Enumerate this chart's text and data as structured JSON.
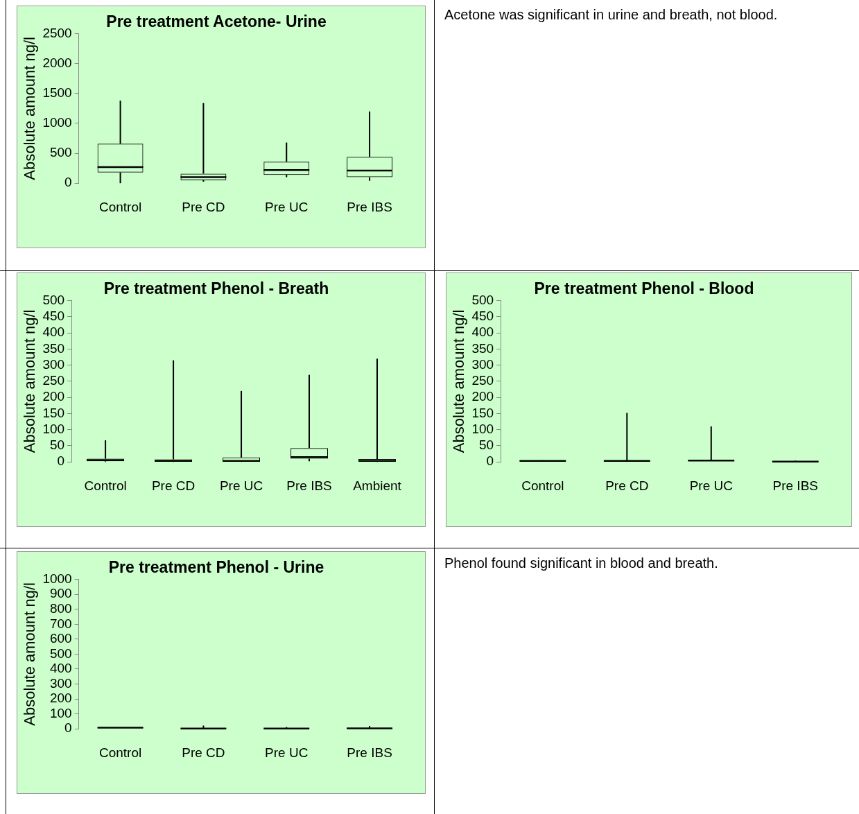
{
  "chart_data": [
    {
      "type": "box",
      "title": "Pre treatment Acetone- Urine",
      "ylabel": "Absolute amount ng/l",
      "categories": [
        "Control",
        "Pre CD",
        "Pre UC",
        "Pre IBS"
      ],
      "ylim": [
        0,
        2500
      ],
      "yticks": [
        0,
        500,
        1000,
        1500,
        2000,
        2500
      ],
      "boxes": [
        {
          "low": 0,
          "q1": 180,
          "median": 270,
          "q3": 660,
          "high": 1380
        },
        {
          "low": 25,
          "q1": 50,
          "median": 100,
          "q3": 160,
          "high": 1340
        },
        {
          "low": 100,
          "q1": 140,
          "median": 220,
          "q3": 360,
          "high": 680
        },
        {
          "low": 40,
          "q1": 100,
          "median": 210,
          "q3": 440,
          "high": 1200
        }
      ]
    },
    {
      "type": "other",
      "annotations": [
        "Acetone was significant in urine and breath, not blood."
      ]
    },
    {
      "type": "box",
      "title": "Pre treatment Phenol - Breath",
      "ylabel": "Absolute amount ng/l",
      "categories": [
        "Control",
        "Pre CD",
        "Pre UC",
        "Pre IBS",
        "Ambient"
      ],
      "ylim": [
        0,
        500
      ],
      "yticks": [
        0,
        50,
        100,
        150,
        200,
        250,
        300,
        350,
        400,
        450,
        500
      ],
      "boxes": [
        {
          "low": 0,
          "q1": 2,
          "median": 5,
          "q3": 10,
          "high": 67
        },
        {
          "low": 0,
          "q1": 2,
          "median": 3,
          "q3": 8,
          "high": 315
        },
        {
          "low": 0,
          "q1": 2,
          "median": 3,
          "q3": 14,
          "high": 220
        },
        {
          "low": 2,
          "q1": 10,
          "median": 15,
          "q3": 43,
          "high": 270
        },
        {
          "low": 0,
          "q1": 2,
          "median": 3,
          "q3": 9,
          "high": 320
        }
      ]
    },
    {
      "type": "box",
      "title": "Pre treatment Phenol - Blood",
      "ylabel": "Absolute amount ng/l",
      "categories": [
        "Control",
        "Pre CD",
        "Pre UC",
        "Pre IBS"
      ],
      "ylim": [
        0,
        500
      ],
      "yticks": [
        0,
        50,
        100,
        150,
        200,
        250,
        300,
        350,
        400,
        450,
        500
      ],
      "boxes": [
        {
          "low": 2,
          "q1": 2,
          "median": 3,
          "q3": 4,
          "high": 5
        },
        {
          "low": 2,
          "q1": 2,
          "median": 3,
          "q3": 4,
          "high": 152
        },
        {
          "low": 3,
          "q1": 3,
          "median": 4,
          "q3": 5,
          "high": 110
        },
        {
          "low": 0,
          "q1": 0,
          "median": 1,
          "q3": 2,
          "high": 4
        }
      ]
    },
    {
      "type": "box",
      "title": "Pre treatment Phenol - Urine",
      "ylabel": "Absolute amount ng/l",
      "categories": [
        "Control",
        "Pre CD",
        "Pre UC",
        "Pre IBS"
      ],
      "ylim": [
        0,
        1000
      ],
      "yticks": [
        0,
        100,
        200,
        300,
        400,
        500,
        600,
        700,
        800,
        900,
        1000
      ],
      "boxes": [
        {
          "low": 5,
          "q1": 5,
          "median": 8,
          "q3": 10,
          "high": 10
        },
        {
          "low": 0,
          "q1": 0,
          "median": 2,
          "q3": 4,
          "high": 22
        },
        {
          "low": 0,
          "q1": 0,
          "median": 2,
          "q3": 3,
          "high": 12
        },
        {
          "low": 1,
          "q1": 1,
          "median": 3,
          "q3": 4,
          "high": 19
        }
      ]
    },
    {
      "type": "other",
      "annotations": [
        "Phenol found significant in blood and breath."
      ]
    }
  ]
}
